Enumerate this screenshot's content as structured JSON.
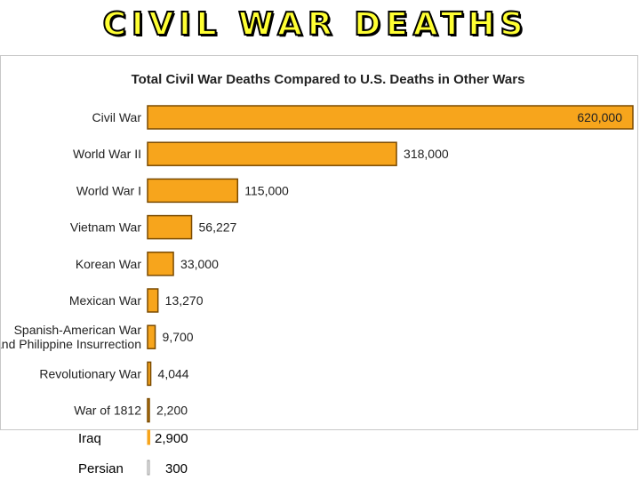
{
  "slide": {
    "title": "CIVIL WAR DEATHS"
  },
  "colors": {
    "bar_fill": "#f7a51c",
    "bar_stroke": "#7a4a00",
    "text": "#222222",
    "title_fill": "#ffff33"
  },
  "chart_data": {
    "type": "bar",
    "orientation": "horizontal",
    "title": "Total Civil War Deaths Compared to U.S. Deaths in Other Wars",
    "categories": [
      "Civil War",
      "World War II",
      "World War I",
      "Vietnam War",
      "Korean War",
      "Mexican War",
      "Spanish-American War and Philippine Insurrection",
      "Revolutionary War",
      "War of 1812"
    ],
    "category_lines": [
      [
        "Civil War"
      ],
      [
        "World War II"
      ],
      [
        "World War I"
      ],
      [
        "Vietnam War"
      ],
      [
        "Korean War"
      ],
      [
        "Mexican War"
      ],
      [
        "Spanish-American War",
        "and Philippine Insurrection"
      ],
      [
        "Revolutionary War"
      ],
      [
        "War of 1812"
      ]
    ],
    "values": [
      620000,
      318000,
      115000,
      56227,
      33000,
      13270,
      9700,
      4044,
      2200
    ],
    "value_labels": [
      "620,000",
      "318,000",
      "115,000",
      "56,227",
      "33,000",
      "13,270",
      "9,700",
      "4,044",
      "2,200"
    ],
    "xlim": [
      0,
      620000
    ],
    "grid": false,
    "legend": "none"
  },
  "extra_rows": [
    {
      "label": "Iraq",
      "value": 2900,
      "value_label": "2,900"
    },
    {
      "label": "Persian",
      "value": 300,
      "value_label": "300"
    }
  ]
}
